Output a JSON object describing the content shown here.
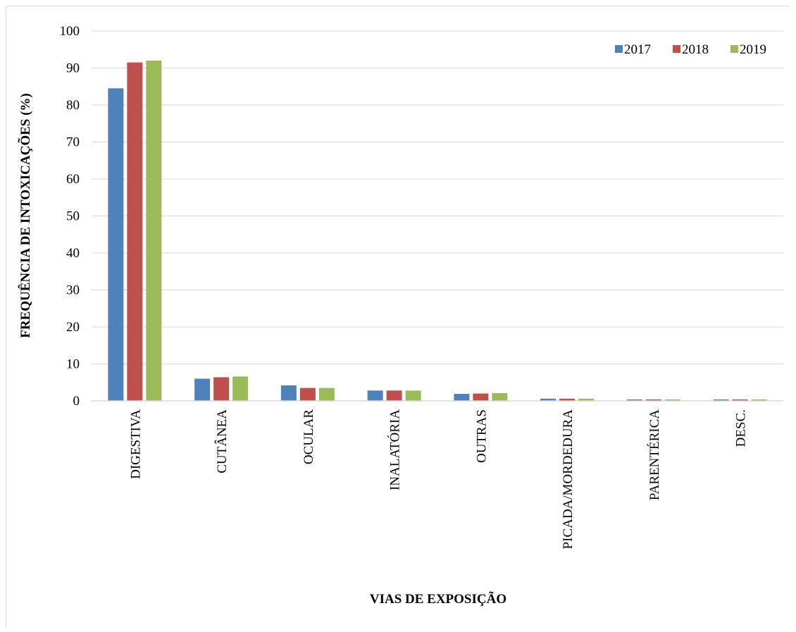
{
  "chart_data": {
    "type": "bar",
    "categories": [
      "DIGESTIVA",
      "CUTÂNEA",
      "OCULAR",
      "INALATÓRIA",
      "OUTRAS",
      "PICADA/MORDEDURA",
      "PARENTÉRICA",
      "DESC."
    ],
    "series": [
      {
        "name": "2017",
        "color": "#4f81bd",
        "values": [
          84.5,
          6.0,
          4.2,
          2.8,
          1.9,
          0.6,
          0.4,
          0.4
        ]
      },
      {
        "name": "2018",
        "color": "#c0504d",
        "values": [
          91.5,
          6.4,
          3.5,
          2.8,
          2.0,
          0.6,
          0.4,
          0.4
        ]
      },
      {
        "name": "2019",
        "color": "#9bbb59",
        "values": [
          92.0,
          6.6,
          3.5,
          2.8,
          2.1,
          0.6,
          0.4,
          0.4
        ]
      }
    ],
    "xlabel": "VIAS DE EXPOSIÇÃO",
    "ylabel": "FREQUÊNCIA DE INTOXICAÇÕES (%)",
    "ylim": [
      0,
      100
    ],
    "yticks": [
      0,
      10,
      20,
      30,
      40,
      50,
      60,
      70,
      80,
      90,
      100
    ],
    "grid": true,
    "legend_position": "top-right"
  }
}
